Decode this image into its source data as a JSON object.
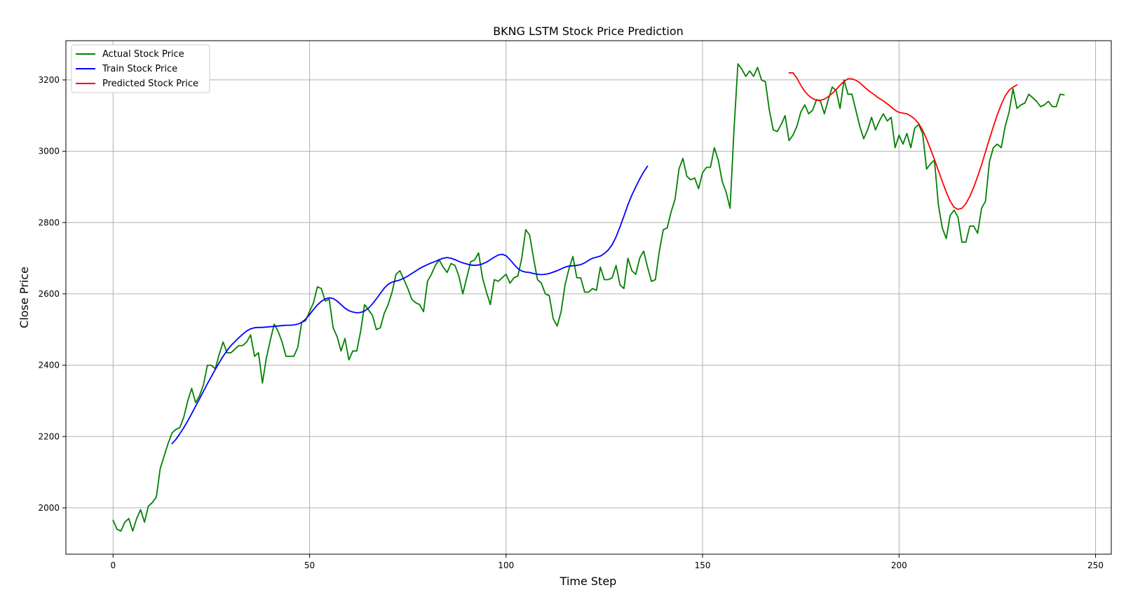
{
  "chart_data": {
    "type": "line",
    "title": "BKNG LSTM Stock Price Prediction",
    "xlabel": "Time Step",
    "ylabel": "Close Price",
    "xlim": [
      -12,
      254
    ],
    "ylim": [
      1870,
      3310
    ],
    "xticks": [
      0,
      50,
      100,
      150,
      200,
      250
    ],
    "yticks": [
      2000,
      2200,
      2400,
      2600,
      2800,
      3000,
      3200
    ],
    "grid": true,
    "legend_position": "top-left",
    "series": [
      {
        "name": "Actual Stock Price",
        "color": "#008000",
        "x_start": 0,
        "values": [
          1965,
          1940,
          1935,
          1960,
          1970,
          1935,
          1970,
          1995,
          1960,
          2005,
          2015,
          2030,
          2110,
          2145,
          2180,
          2210,
          2220,
          2225,
          2255,
          2300,
          2335,
          2295,
          2315,
          2345,
          2400,
          2400,
          2390,
          2430,
          2465,
          2435,
          2435,
          2445,
          2455,
          2455,
          2465,
          2485,
          2425,
          2435,
          2350,
          2420,
          2470,
          2515,
          2495,
          2465,
          2425,
          2425,
          2425,
          2450,
          2520,
          2525,
          2550,
          2575,
          2620,
          2615,
          2580,
          2585,
          2505,
          2480,
          2440,
          2475,
          2415,
          2440,
          2440,
          2495,
          2570,
          2555,
          2540,
          2500,
          2505,
          2545,
          2570,
          2605,
          2655,
          2665,
          2640,
          2615,
          2585,
          2575,
          2570,
          2550,
          2635,
          2655,
          2680,
          2695,
          2675,
          2660,
          2685,
          2680,
          2650,
          2600,
          2645,
          2690,
          2695,
          2715,
          2645,
          2605,
          2570,
          2640,
          2635,
          2645,
          2655,
          2630,
          2645,
          2650,
          2700,
          2780,
          2765,
          2700,
          2640,
          2630,
          2600,
          2595,
          2530,
          2510,
          2550,
          2625,
          2670,
          2705,
          2645,
          2645,
          2605,
          2605,
          2615,
          2610,
          2675,
          2640,
          2640,
          2645,
          2680,
          2625,
          2615,
          2700,
          2665,
          2655,
          2700,
          2720,
          2675,
          2635,
          2640,
          2720,
          2780,
          2785,
          2830,
          2865,
          2950,
          2980,
          2930,
          2920,
          2925,
          2895,
          2940,
          2955,
          2955,
          3010,
          2975,
          2915,
          2885,
          2840,
          3060,
          3245,
          3230,
          3210,
          3225,
          3210,
          3235,
          3200,
          3195,
          3115,
          3060,
          3055,
          3075,
          3100,
          3030,
          3045,
          3070,
          3110,
          3130,
          3105,
          3115,
          3145,
          3140,
          3105,
          3145,
          3180,
          3170,
          3120,
          3200,
          3160,
          3160,
          3115,
          3070,
          3035,
          3060,
          3095,
          3060,
          3085,
          3105,
          3085,
          3095,
          3010,
          3045,
          3020,
          3050,
          3010,
          3065,
          3075,
          3050,
          2950,
          2965,
          2975,
          2850,
          2785,
          2755,
          2820,
          2835,
          2815,
          2745,
          2745,
          2790,
          2790,
          2770,
          2840,
          2860,
          2970,
          3010,
          3020,
          3010,
          3070,
          3110,
          3175,
          3120,
          3130,
          3135,
          3160,
          3150,
          3140,
          3125,
          3130,
          3140,
          3125,
          3125,
          3160,
          3158
        ]
      },
      {
        "name": "Train Stock Price",
        "color": "#0000ff",
        "x_start": 15,
        "values": [
          2180,
          2192,
          2208,
          2225,
          2244,
          2264,
          2285,
          2306,
          2327,
          2348,
          2368,
          2388,
          2407,
          2425,
          2441,
          2455,
          2466,
          2477,
          2487,
          2496,
          2502,
          2505,
          2506,
          2506,
          2507,
          2508,
          2509,
          2510,
          2511,
          2512,
          2512,
          2513,
          2515,
          2520,
          2529,
          2542,
          2556,
          2569,
          2579,
          2586,
          2589,
          2587,
          2580,
          2570,
          2560,
          2553,
          2549,
          2547,
          2548,
          2552,
          2560,
          2572,
          2586,
          2601,
          2616,
          2627,
          2633,
          2636,
          2639,
          2644,
          2650,
          2657,
          2664,
          2671,
          2677,
          2682,
          2687,
          2691,
          2696,
          2700,
          2702,
          2700,
          2696,
          2691,
          2687,
          2684,
          2681,
          2680,
          2681,
          2684,
          2689,
          2696,
          2703,
          2709,
          2711,
          2707,
          2696,
          2683,
          2671,
          2664,
          2661,
          2660,
          2657,
          2655,
          2654,
          2655,
          2657,
          2661,
          2665,
          2670,
          2675,
          2678,
          2679,
          2680,
          2682,
          2687,
          2694,
          2700,
          2703,
          2706,
          2713,
          2723,
          2738,
          2760,
          2788,
          2818,
          2850,
          2877,
          2900,
          2922,
          2942,
          2958
        ]
      },
      {
        "name": "Predicted Stock Price",
        "color": "#ff0000",
        "x_start": 172,
        "values": [
          3220,
          3220,
          3205,
          3185,
          3168,
          3156,
          3148,
          3143,
          3143,
          3146,
          3153,
          3162,
          3173,
          3185,
          3196,
          3203,
          3203,
          3199,
          3192,
          3182,
          3172,
          3164,
          3156,
          3148,
          3141,
          3133,
          3124,
          3115,
          3109,
          3107,
          3105,
          3099,
          3090,
          3078,
          3059,
          3034,
          3006,
          2977,
          2946,
          2915,
          2886,
          2860,
          2843,
          2837,
          2840,
          2853,
          2873,
          2899,
          2929,
          2962,
          2998,
          3034,
          3069,
          3102,
          3131,
          3155,
          3171,
          3180,
          3186
        ]
      }
    ]
  }
}
